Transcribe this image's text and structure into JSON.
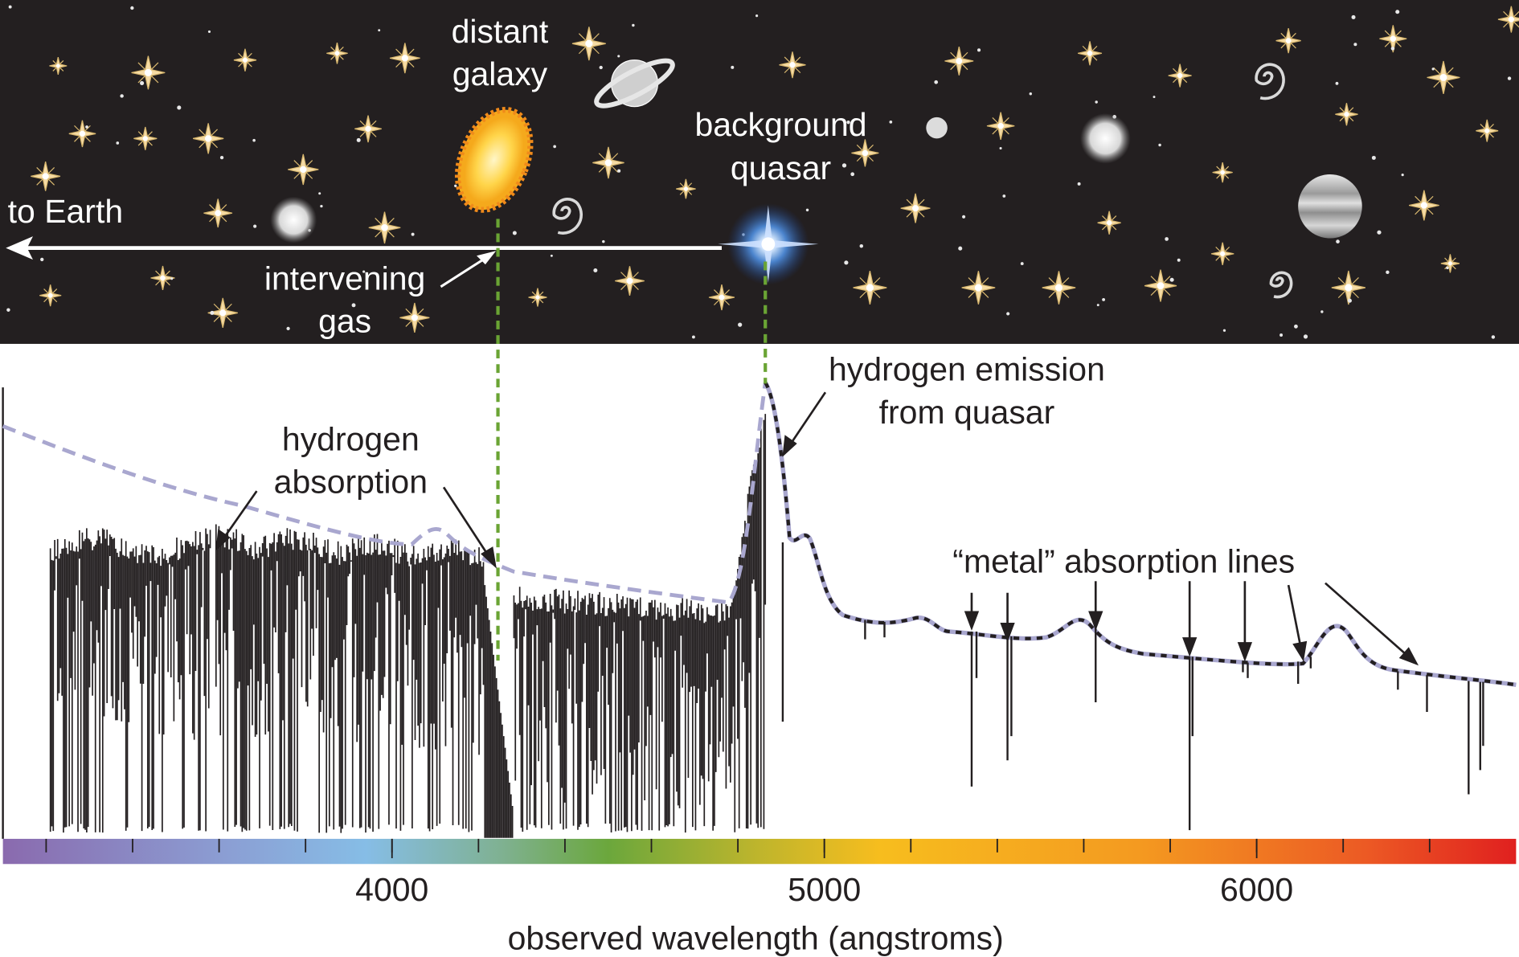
{
  "scene": {
    "distant_galaxy": [
      "distant",
      "galaxy"
    ],
    "background_quasar": [
      "background",
      "quasar"
    ],
    "to_earth": "to Earth",
    "intervening_gas": [
      "intervening",
      "gas"
    ]
  },
  "spectrum": {
    "hydrogen_absorption": [
      "hydrogen",
      "absorption"
    ],
    "hydrogen_emission": [
      "hydrogen emission",
      "from quasar"
    ],
    "metal_lines": "“metal” absorption lines",
    "xlim": [
      3100,
      6600
    ],
    "xticks": [
      4000,
      5000,
      6000
    ],
    "tick_marks": [
      3200,
      3400,
      3600,
      3800,
      4000,
      4200,
      4400,
      4600,
      4800,
      5000,
      5200,
      5400,
      5600,
      5800,
      6000,
      6200,
      6400
    ],
    "xlabel": "observed wavelength (angstroms)"
  }
}
